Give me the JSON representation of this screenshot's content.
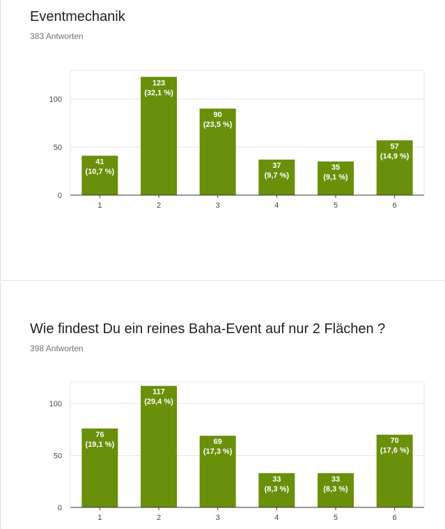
{
  "colors": {
    "bar": "#6a8f0a",
    "grid": "#e6e6e6",
    "axis": "#333333"
  },
  "chart_data": [
    {
      "type": "bar",
      "title": "Eventmechanik",
      "responses": "383 Antworten",
      "categories": [
        "1",
        "2",
        "3",
        "4",
        "5",
        "6"
      ],
      "values": [
        41,
        123,
        90,
        37,
        35,
        57
      ],
      "labels": [
        [
          "41",
          "(10,7 %)"
        ],
        [
          "123",
          "(32,1 %)"
        ],
        [
          "90",
          "(23,5 %)"
        ],
        [
          "37",
          "(9,7 %)"
        ],
        [
          "35",
          "(9,1 %)"
        ],
        [
          "57",
          "(14,9 %)"
        ]
      ],
      "yticks": [
        0,
        50,
        100
      ],
      "ylim": [
        0,
        130
      ]
    },
    {
      "type": "bar",
      "title": "Wie findest Du ein reines Baha-Event auf nur 2 Flächen ?",
      "responses": "398 Antworten",
      "categories": [
        "1",
        "2",
        "3",
        "4",
        "5",
        "6"
      ],
      "values": [
        76,
        117,
        69,
        33,
        33,
        70
      ],
      "labels": [
        [
          "76",
          "(19,1 %)"
        ],
        [
          "117",
          "(29,4 %)"
        ],
        [
          "69",
          "(17,3 %)"
        ],
        [
          "33",
          "(8,3 %)"
        ],
        [
          "33",
          "(8,3 %)"
        ],
        [
          "70",
          "(17,6 %)"
        ]
      ],
      "yticks": [
        0,
        50,
        100
      ],
      "ylim": [
        0,
        120
      ]
    }
  ]
}
